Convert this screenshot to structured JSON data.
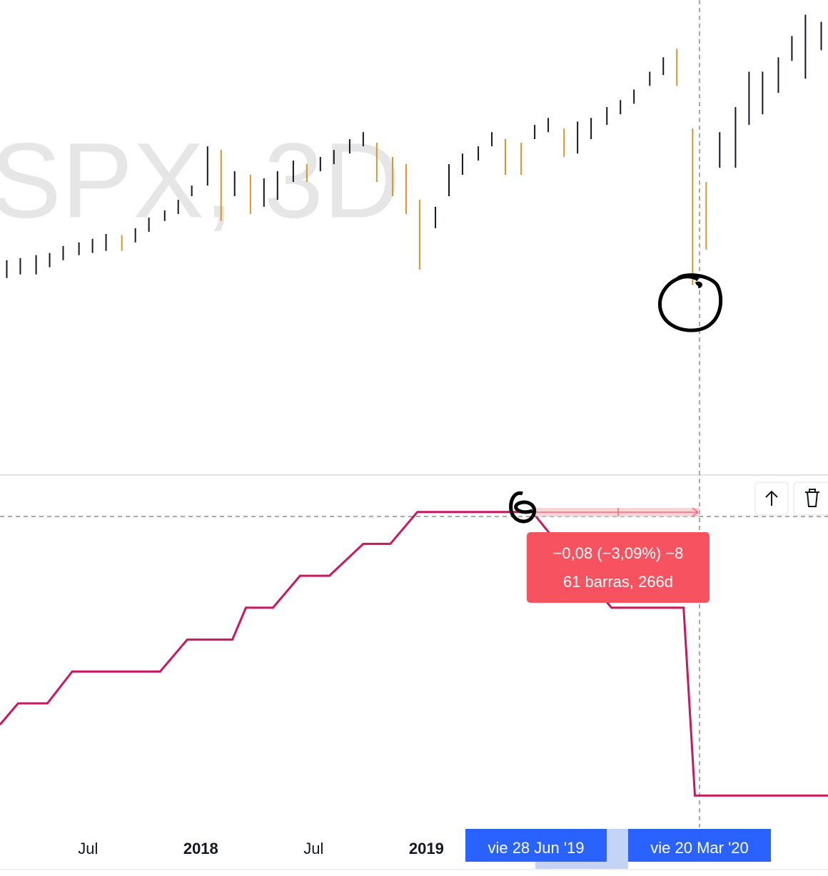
{
  "chart_data": [
    {
      "type": "ohlc",
      "title": "SPX, 3D",
      "x": [
        2017.14,
        2017.2,
        2017.27,
        2017.33,
        2017.39,
        2017.46,
        2017.52,
        2017.58,
        2017.65,
        2017.71,
        2017.77,
        2017.84,
        2017.9,
        2017.96,
        2018.03,
        2018.09,
        2018.15,
        2018.22,
        2018.28,
        2018.34,
        2018.41,
        2018.47,
        2018.53,
        2018.59,
        2018.66,
        2018.72,
        2018.78,
        2018.85,
        2018.91,
        2018.97,
        2019.04,
        2019.1,
        2019.16,
        2019.23,
        2019.29,
        2019.35,
        2019.42,
        2019.48,
        2019.54,
        2019.61,
        2019.67,
        2019.73,
        2019.8,
        2019.86,
        2019.92,
        2019.99,
        2020.05,
        2020.11,
        2020.18,
        2020.24,
        2020.3,
        2020.37,
        2020.43,
        2020.49,
        2020.56,
        2020.62,
        2020.68,
        2020.75
      ],
      "high": [
        2393,
        2403,
        2417,
        2427,
        2460,
        2477,
        2494,
        2517,
        2511,
        2544,
        2594,
        2628,
        2678,
        2745,
        2930,
        2913,
        2813,
        2796,
        2779,
        2813,
        2863,
        2846,
        2880,
        2913,
        2964,
        2997,
        2947,
        2880,
        2846,
        2678,
        2645,
        2846,
        2896,
        2930,
        2997,
        2964,
        2947,
        3031,
        3064,
        3014,
        3047,
        3064,
        3115,
        3148,
        3198,
        3282,
        3350,
        3390,
        3014,
        2762,
        2997,
        3115,
        3282,
        3282,
        3350,
        3450,
        3551,
        3517
      ],
      "low": [
        2309,
        2326,
        2326,
        2360,
        2393,
        2417,
        2427,
        2437,
        2437,
        2477,
        2527,
        2578,
        2611,
        2695,
        2745,
        2578,
        2695,
        2611,
        2645,
        2678,
        2762,
        2762,
        2813,
        2846,
        2896,
        2930,
        2762,
        2695,
        2611,
        2349,
        2544,
        2695,
        2796,
        2863,
        2930,
        2796,
        2796,
        2964,
        2997,
        2880,
        2896,
        2964,
        3031,
        3081,
        3131,
        3215,
        3266,
        3215,
        2276,
        2443,
        2829,
        2829,
        3031,
        3081,
        3182,
        3333,
        3249,
        3383
      ],
      "up_color": "#131722",
      "down_color": "#d9952b",
      "xlim": [
        2017.11,
        2020.78
      ],
      "ylim": [
        1400,
        3620
      ]
    },
    {
      "type": "line",
      "x": [
        2017.11,
        2017.19,
        2017.32,
        2017.43,
        2017.82,
        2017.94,
        2018.14,
        2018.2,
        2018.32,
        2018.44,
        2018.57,
        2018.72,
        2018.84,
        2018.96,
        2019.47,
        2019.52,
        2019.82,
        2020.14,
        2020.19,
        2020.78
      ],
      "values": [
        1.99,
        2.05,
        2.05,
        2.14,
        2.14,
        2.23,
        2.23,
        2.32,
        2.32,
        2.41,
        2.41,
        2.5,
        2.5,
        2.59,
        2.59,
        2.55,
        2.32,
        2.32,
        1.79,
        1.79
      ],
      "color": "#c8185f",
      "xlim": [
        2017.11,
        2020.78
      ],
      "ylim": [
        1.7,
        2.69
      ],
      "xticks": [
        {
          "value": 2017.5,
          "label": "Jul"
        },
        2018,
        {
          "value": 2018.5,
          "label": "Jul"
        },
        2019
      ]
    }
  ],
  "measure": {
    "line1": "−0,08 (−3,09%) −8",
    "line2": "61 barras, 266d"
  },
  "crosshair": {
    "start_label": "vie 28 Jun '19",
    "end_label": "vie 20 Mar '20"
  }
}
